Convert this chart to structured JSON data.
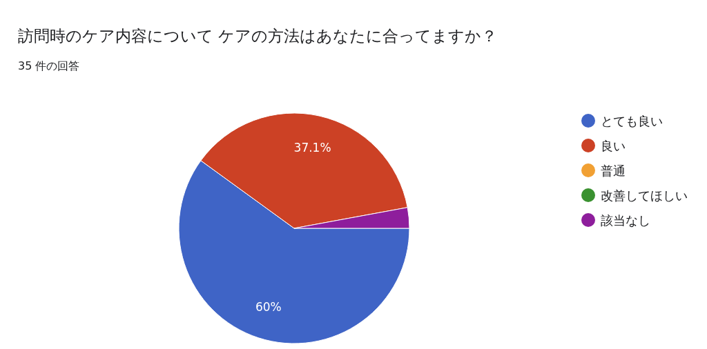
{
  "chart_data": {
    "type": "pie",
    "title": "訪問時のケア内容について ケアの方法はあなたに合ってますか？",
    "subtitle": "35 件の回答",
    "categories": [
      "とても良い",
      "良い",
      "普通",
      "改善してほしい",
      "該当なし"
    ],
    "values": [
      60,
      37.1,
      0,
      0,
      2.9
    ],
    "colors": [
      "#3f64c6",
      "#cc4125",
      "#f1a033",
      "#3a9130",
      "#8e1e9c"
    ],
    "value_labels": [
      "60%",
      "37.1%",
      null,
      null,
      null
    ],
    "legend": "right"
  }
}
